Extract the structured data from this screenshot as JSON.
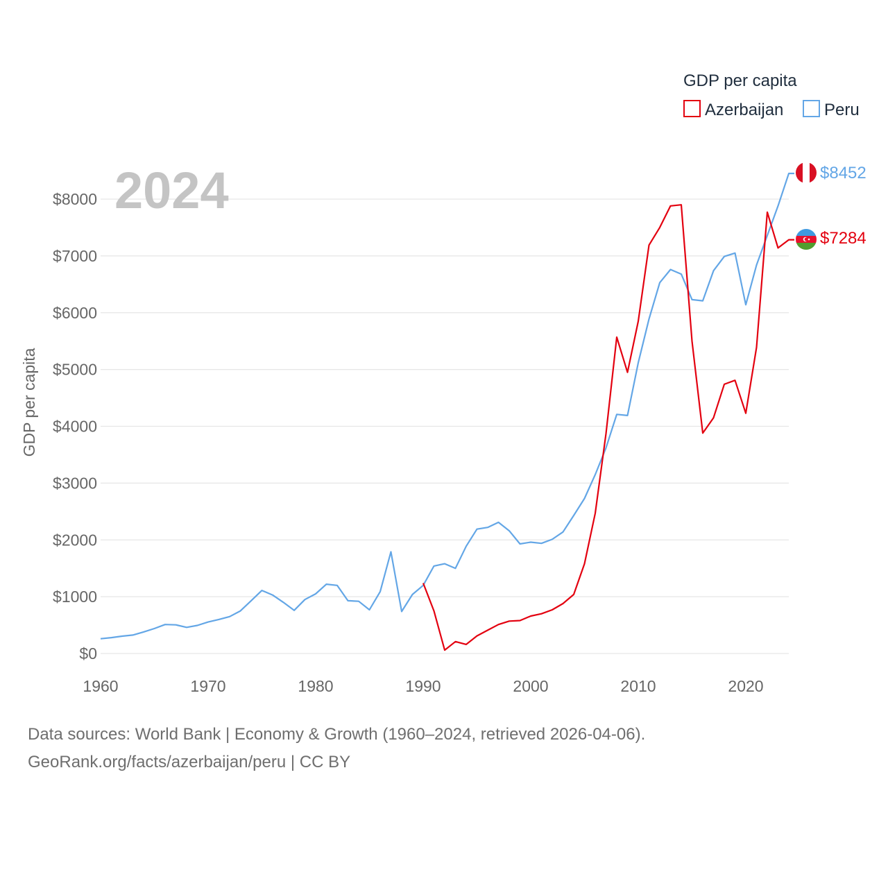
{
  "chart_data": {
    "type": "line",
    "year_label": "2024",
    "ylabel": "GDP per capita",
    "xlim": [
      1960,
      2024
    ],
    "ylim": [
      0,
      8000
    ],
    "x_ticks": [
      1960,
      1970,
      1980,
      1990,
      2000,
      2010,
      2020
    ],
    "y_ticks": [
      0,
      1000,
      2000,
      3000,
      4000,
      5000,
      6000,
      7000,
      8000
    ],
    "y_tick_labels": [
      "$0",
      "$1000",
      "$2000",
      "$3000",
      "$4000",
      "$5000",
      "$6000",
      "$7000",
      "$8000"
    ],
    "x_tick_labels": [
      "1960",
      "1970",
      "1980",
      "1990",
      "2000",
      "2010",
      "2020"
    ],
    "legend": {
      "title": "GDP per capita",
      "position": "top-right"
    },
    "series": [
      {
        "name": "Azerbaijan",
        "color": "#e3000f",
        "end_label": "$7284",
        "flag": "azerbaijan-flag",
        "x": [
          1990,
          1991,
          1992,
          1993,
          1994,
          1995,
          1996,
          1997,
          1998,
          1999,
          2000,
          2001,
          2002,
          2003,
          2004,
          2005,
          2006,
          2007,
          2008,
          2009,
          2010,
          2011,
          2012,
          2013,
          2014,
          2015,
          2016,
          2017,
          2018,
          2019,
          2020,
          2021,
          2022,
          2023,
          2024
        ],
        "values": [
          1240,
          750,
          60,
          210,
          160,
          310,
          410,
          510,
          570,
          580,
          660,
          700,
          770,
          880,
          1040,
          1580,
          2470,
          3870,
          5570,
          4950,
          5850,
          7190,
          7500,
          7880,
          7900,
          5500,
          3880,
          4150,
          4740,
          4810,
          4230,
          5390,
          7770,
          7140,
          7284
        ]
      },
      {
        "name": "Peru",
        "color": "#63a6e6",
        "end_label": "$8452",
        "flag": "peru-flag",
        "x": [
          1960,
          1961,
          1962,
          1963,
          1964,
          1965,
          1966,
          1967,
          1968,
          1969,
          1970,
          1971,
          1972,
          1973,
          1974,
          1975,
          1976,
          1977,
          1978,
          1979,
          1980,
          1981,
          1982,
          1983,
          1984,
          1985,
          1986,
          1987,
          1988,
          1989,
          1990,
          1991,
          1992,
          1993,
          1994,
          1995,
          1996,
          1997,
          1998,
          1999,
          2000,
          2001,
          2002,
          2003,
          2004,
          2005,
          2006,
          2007,
          2008,
          2009,
          2010,
          2011,
          2012,
          2013,
          2014,
          2015,
          2016,
          2017,
          2018,
          2019,
          2020,
          2021,
          2022,
          2023,
          2024
        ],
        "values": [
          260,
          280,
          305,
          325,
          380,
          440,
          510,
          505,
          460,
          495,
          555,
          600,
          650,
          750,
          930,
          1110,
          1030,
          900,
          760,
          950,
          1050,
          1220,
          1200,
          930,
          920,
          770,
          1090,
          1790,
          740,
          1040,
          1200,
          1540,
          1580,
          1500,
          1890,
          2190,
          2220,
          2310,
          2160,
          1930,
          1960,
          1940,
          2010,
          2140,
          2430,
          2730,
          3150,
          3620,
          4210,
          4190,
          5120,
          5890,
          6530,
          6760,
          6680,
          6230,
          6210,
          6740,
          6990,
          7050,
          6140,
          6840,
          7360,
          7880,
          8452
        ]
      }
    ]
  },
  "footer": {
    "line1": "Data sources: World Bank | Economy & Growth (1960–2024, retrieved 2026-04-06).",
    "line2": "GeoRank.org/facts/azerbaijan/peru | CC BY"
  }
}
